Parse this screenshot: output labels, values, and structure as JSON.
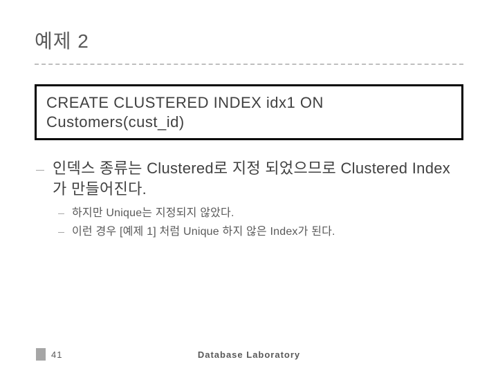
{
  "title": "예제 2",
  "code": {
    "line1": "CREATE CLUSTERED INDEX idx1 ON",
    "line2": "Customers(cust_id)"
  },
  "main_bullet": "인덱스 종류는 Clustered로 지정 되었으므로 Clustered Index가 만들어진다.",
  "sub_bullets": [
    "하지만 Unique는 지정되지 않았다.",
    "이런 경우 [예제 1] 처럼 Unique 하지 않은 Index가 된다."
  ],
  "footer": {
    "page": "41",
    "label": "Database Laboratory"
  },
  "colors": {
    "title_color": "#595959",
    "underline_color": "#bfbfbf",
    "box_border": "#000000",
    "text_color": "#404040",
    "sub_text_color": "#595959",
    "bullet_color": "#a6a6a6",
    "page_block": "#a6a6a6",
    "background": "#ffffff"
  }
}
